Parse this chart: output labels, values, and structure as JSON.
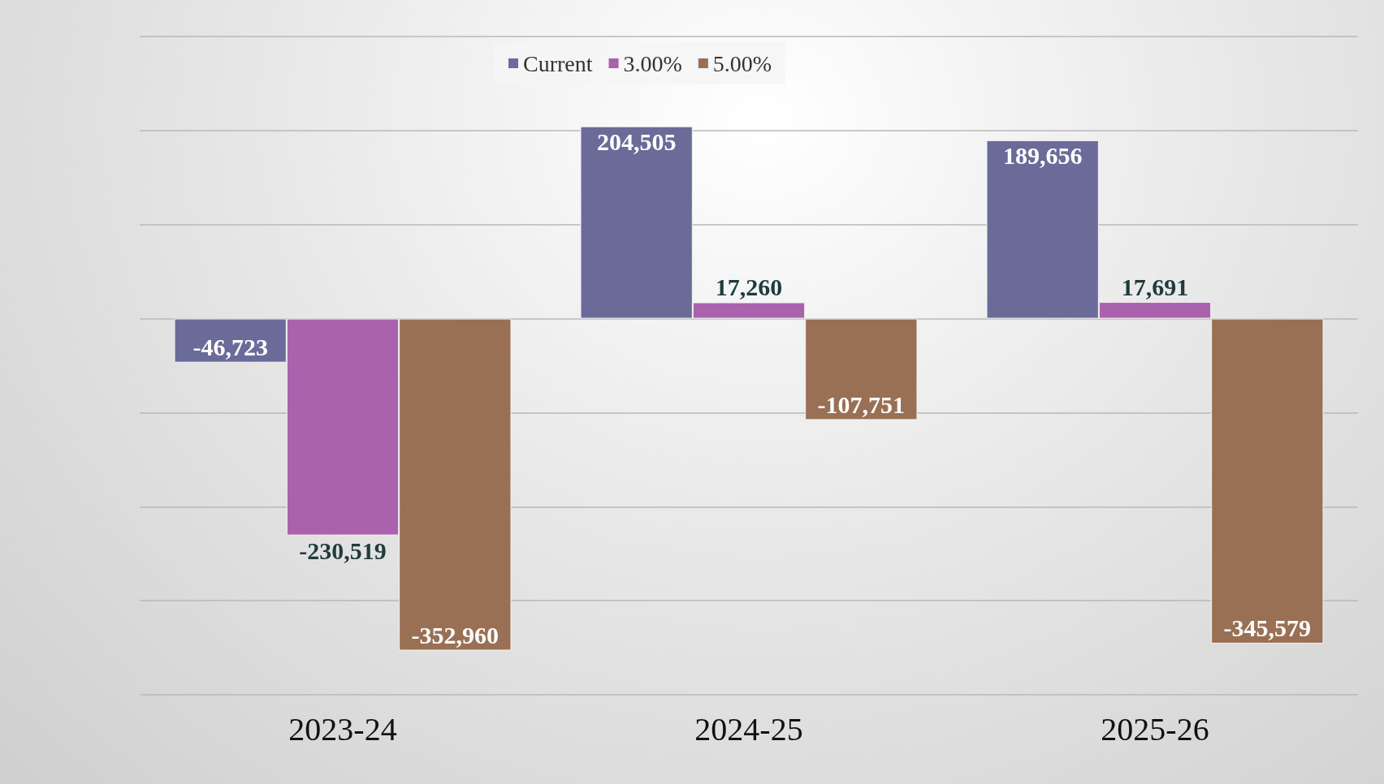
{
  "chart_data": {
    "type": "bar",
    "categories": [
      "2023-24",
      "2024-25",
      "2025-26"
    ],
    "series": [
      {
        "name": "Current",
        "color": "#6b6b9a",
        "values": [
          -46723,
          204505,
          189656
        ],
        "value_labels": [
          "-46,723",
          "204,505",
          "189,656"
        ]
      },
      {
        "name": "3.00%",
        "color": "#ab62ad",
        "values": [
          -230519,
          17260,
          17691
        ],
        "value_labels": [
          "-230,519",
          "17,260",
          "17,691"
        ]
      },
      {
        "name": "5.00%",
        "color": "#9a7055",
        "values": [
          -352960,
          -107751,
          -345579
        ],
        "value_labels": [
          "-352,960",
          "-107,751",
          "-345,579"
        ]
      }
    ],
    "tick_labels": "x",
    "grid": "y",
    "legend": "top"
  }
}
